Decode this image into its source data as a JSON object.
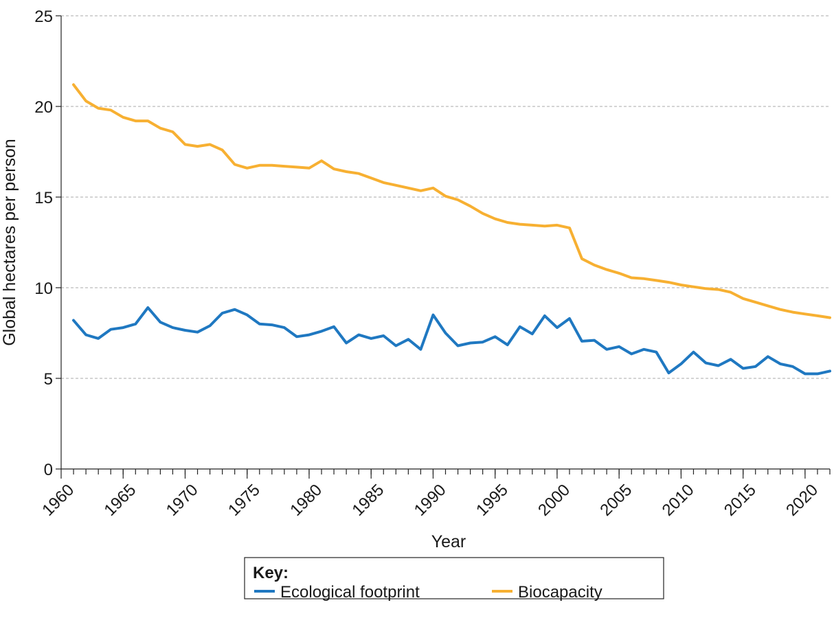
{
  "chart_data": {
    "type": "line",
    "y_label": "Global hectares per person",
    "x_label": "Year",
    "legend_title": "Key:",
    "x": [
      1961,
      1962,
      1963,
      1964,
      1965,
      1966,
      1967,
      1968,
      1969,
      1970,
      1971,
      1972,
      1973,
      1974,
      1975,
      1976,
      1977,
      1978,
      1979,
      1980,
      1981,
      1982,
      1983,
      1984,
      1985,
      1986,
      1987,
      1988,
      1989,
      1990,
      1991,
      1992,
      1993,
      1994,
      1995,
      1996,
      1997,
      1998,
      1999,
      2000,
      2001,
      2002,
      2003,
      2004,
      2005,
      2006,
      2007,
      2008,
      2009,
      2010,
      2011,
      2012,
      2013,
      2014,
      2015,
      2016,
      2017,
      2018,
      2019,
      2020,
      2021,
      2022
    ],
    "series": [
      {
        "name": "Ecological footprint",
        "color": "#1f78c1",
        "values": [
          8.2,
          7.4,
          7.2,
          7.7,
          7.8,
          8.0,
          8.9,
          8.1,
          7.8,
          7.65,
          7.55,
          7.9,
          8.6,
          8.8,
          8.5,
          8.0,
          7.95,
          7.8,
          7.3,
          7.4,
          7.6,
          7.85,
          6.95,
          7.4,
          7.2,
          7.35,
          6.8,
          7.15,
          6.6,
          8.5,
          7.5,
          6.8,
          6.95,
          7.0,
          7.3,
          6.85,
          7.85,
          7.45,
          8.45,
          7.8,
          8.3,
          7.05,
          7.1,
          6.6,
          6.75,
          6.35,
          6.6,
          6.45,
          5.3,
          5.8,
          6.45,
          5.85,
          5.7,
          6.05,
          5.55,
          5.65,
          6.2,
          5.8,
          5.65,
          5.25,
          5.25,
          5.4
        ]
      },
      {
        "name": "Biocapacity",
        "color": "#f7b032",
        "values": [
          21.2,
          20.3,
          19.9,
          19.8,
          19.4,
          19.2,
          19.2,
          18.8,
          18.6,
          17.9,
          17.8,
          17.9,
          17.6,
          16.8,
          16.6,
          16.75,
          16.75,
          16.7,
          16.65,
          16.6,
          17.0,
          16.55,
          16.4,
          16.3,
          16.05,
          15.8,
          15.65,
          15.5,
          15.35,
          15.5,
          15.05,
          14.85,
          14.5,
          14.1,
          13.8,
          13.6,
          13.5,
          13.45,
          13.4,
          13.45,
          13.3,
          11.6,
          11.25,
          11.0,
          10.8,
          10.55,
          10.5,
          10.4,
          10.3,
          10.15,
          10.05,
          9.95,
          9.9,
          9.75,
          9.4,
          9.2,
          9.0,
          8.8,
          8.65,
          8.55,
          8.45,
          8.35
        ]
      }
    ],
    "xlim": [
      1960,
      2022
    ],
    "xticks": [
      1960,
      1965,
      1970,
      1975,
      1980,
      1985,
      1990,
      1995,
      2000,
      2005,
      2010,
      2015,
      2020
    ],
    "ylim": [
      0,
      25
    ],
    "yticks": [
      0,
      5,
      10,
      15,
      20,
      25
    ],
    "grid": true
  }
}
